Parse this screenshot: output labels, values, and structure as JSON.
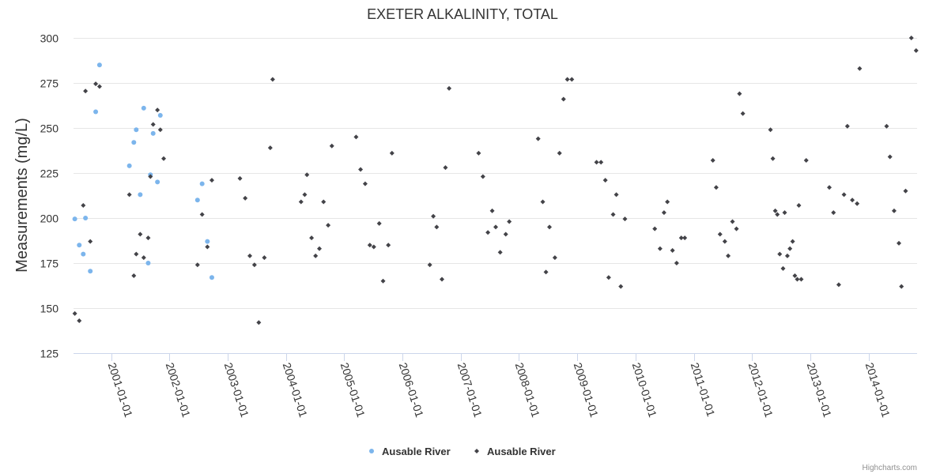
{
  "chart_data": {
    "type": "scatter",
    "title": "EXETER ALKALINITY, TOTAL",
    "xlabel": "",
    "ylabel": "Measurements (mg/L)",
    "xlim": [
      "2000-05-10",
      "2014-10-31"
    ],
    "ylim": [
      125,
      300
    ],
    "y_ticks": [
      125,
      150,
      175,
      200,
      225,
      250,
      275,
      300
    ],
    "x_ticks": [
      "2001-01-01",
      "2002-01-01",
      "2003-01-01",
      "2004-01-01",
      "2005-01-01",
      "2006-01-01",
      "2007-01-01",
      "2008-01-01",
      "2009-01-01",
      "2010-01-01",
      "2011-01-01",
      "2012-01-01",
      "2013-01-01",
      "2014-01-01"
    ],
    "grid": "horizontal",
    "legend_position": "bottom-center",
    "credits": "Highcharts.com",
    "series": [
      {
        "name": "Ausable River",
        "marker": "circle",
        "color": "#7cb5ec",
        "points": [
          [
            "2000-05-18",
            199.5
          ],
          [
            "2000-06-15",
            185
          ],
          [
            "2000-07-10",
            180
          ],
          [
            "2000-07-24",
            200
          ],
          [
            "2000-08-23",
            170.5
          ],
          [
            "2000-09-26",
            259
          ],
          [
            "2000-10-20",
            285
          ],
          [
            "2001-04-25",
            229
          ],
          [
            "2001-05-23",
            242
          ],
          [
            "2001-06-07",
            249
          ],
          [
            "2001-07-02",
            213
          ],
          [
            "2001-07-24",
            261
          ],
          [
            "2001-08-21",
            175
          ],
          [
            "2001-09-04",
            224
          ],
          [
            "2001-09-21",
            247
          ],
          [
            "2001-10-18",
            220
          ],
          [
            "2001-11-05",
            257
          ],
          [
            "2002-06-26",
            210
          ],
          [
            "2002-07-25",
            219
          ],
          [
            "2002-08-27",
            187
          ],
          [
            "2002-09-24",
            167
          ]
        ]
      },
      {
        "name": "Ausable River",
        "marker": "diamond",
        "color": "#434348",
        "points": [
          [
            "2000-05-18",
            147
          ],
          [
            "2000-06-15",
            143
          ],
          [
            "2000-07-10",
            207
          ],
          [
            "2000-07-24",
            270.5
          ],
          [
            "2000-08-23",
            187
          ],
          [
            "2000-09-26",
            274.5
          ],
          [
            "2000-10-20",
            273
          ],
          [
            "2001-04-25",
            213
          ],
          [
            "2001-05-23",
            168
          ],
          [
            "2001-06-07",
            180
          ],
          [
            "2001-07-02",
            191
          ],
          [
            "2001-07-24",
            178
          ],
          [
            "2001-08-21",
            189
          ],
          [
            "2001-09-04",
            223
          ],
          [
            "2001-09-21",
            252
          ],
          [
            "2001-10-18",
            260
          ],
          [
            "2001-11-05",
            249
          ],
          [
            "2001-11-26",
            233
          ],
          [
            "2002-06-26",
            174
          ],
          [
            "2002-07-25",
            202
          ],
          [
            "2002-08-27",
            184
          ],
          [
            "2002-09-24",
            221
          ],
          [
            "2003-03-19",
            222
          ],
          [
            "2003-04-21",
            211
          ],
          [
            "2003-05-20",
            179
          ],
          [
            "2003-06-18",
            174
          ],
          [
            "2003-07-15",
            142
          ],
          [
            "2003-08-19",
            178
          ],
          [
            "2003-09-25",
            239
          ],
          [
            "2003-10-10",
            277
          ],
          [
            "2004-04-05",
            209
          ],
          [
            "2004-04-28",
            213
          ],
          [
            "2004-05-12",
            224
          ],
          [
            "2004-06-10",
            189
          ],
          [
            "2004-07-05",
            179
          ],
          [
            "2004-07-29",
            183
          ],
          [
            "2004-08-24",
            209
          ],
          [
            "2004-09-22",
            196
          ],
          [
            "2004-10-15",
            240
          ],
          [
            "2005-03-16",
            245
          ],
          [
            "2005-04-13",
            227
          ],
          [
            "2005-05-12",
            219
          ],
          [
            "2005-06-10",
            185
          ],
          [
            "2005-07-05",
            184
          ],
          [
            "2005-08-08",
            197
          ],
          [
            "2005-09-01",
            165
          ],
          [
            "2005-10-04",
            185
          ],
          [
            "2005-10-27",
            236
          ],
          [
            "2006-06-21",
            174
          ],
          [
            "2006-07-13",
            201
          ],
          [
            "2006-08-03",
            195
          ],
          [
            "2006-09-05",
            166
          ],
          [
            "2006-09-27",
            228
          ],
          [
            "2006-10-20",
            272
          ],
          [
            "2007-04-23",
            236
          ],
          [
            "2007-05-20",
            223
          ],
          [
            "2007-06-20",
            192
          ],
          [
            "2007-07-17",
            204
          ],
          [
            "2007-08-08",
            195
          ],
          [
            "2007-09-05",
            181
          ],
          [
            "2007-10-10",
            191
          ],
          [
            "2007-11-01",
            198
          ],
          [
            "2008-04-30",
            244
          ],
          [
            "2008-05-29",
            209
          ],
          [
            "2008-06-18",
            170
          ],
          [
            "2008-07-10",
            195
          ],
          [
            "2008-08-13",
            178
          ],
          [
            "2008-09-11",
            236
          ],
          [
            "2008-10-06",
            266
          ],
          [
            "2008-10-30",
            277
          ],
          [
            "2008-11-27",
            277
          ],
          [
            "2009-05-01",
            231
          ],
          [
            "2009-05-29",
            231
          ],
          [
            "2009-06-25",
            221
          ],
          [
            "2009-07-16",
            167
          ],
          [
            "2009-08-13",
            202
          ],
          [
            "2009-09-02",
            213
          ],
          [
            "2009-09-30",
            162
          ],
          [
            "2009-10-26",
            199.5
          ],
          [
            "2010-05-01",
            194
          ],
          [
            "2010-06-03",
            183
          ],
          [
            "2010-06-28",
            203
          ],
          [
            "2010-07-19",
            209
          ],
          [
            "2010-08-20",
            182
          ],
          [
            "2010-09-15",
            175
          ],
          [
            "2010-10-14",
            189
          ],
          [
            "2010-11-05",
            189
          ],
          [
            "2011-04-30",
            232
          ],
          [
            "2011-05-21",
            217
          ],
          [
            "2011-06-14",
            191
          ],
          [
            "2011-07-14",
            187
          ],
          [
            "2011-08-04",
            179
          ],
          [
            "2011-08-31",
            198
          ],
          [
            "2011-09-25",
            194
          ],
          [
            "2011-10-14",
            269
          ],
          [
            "2011-11-04",
            258
          ],
          [
            "2012-04-25",
            249
          ],
          [
            "2012-05-10",
            233
          ],
          [
            "2012-05-25",
            204
          ],
          [
            "2012-06-07",
            202
          ],
          [
            "2012-06-22",
            180
          ],
          [
            "2012-07-13",
            172
          ],
          [
            "2012-07-23",
            203
          ],
          [
            "2012-08-09",
            179
          ],
          [
            "2012-08-25",
            183
          ],
          [
            "2012-09-11",
            187
          ],
          [
            "2012-09-25",
            168
          ],
          [
            "2012-10-10",
            166
          ],
          [
            "2012-10-20",
            207
          ],
          [
            "2012-11-04",
            166
          ],
          [
            "2012-12-05",
            232
          ],
          [
            "2013-04-29",
            217
          ],
          [
            "2013-05-25",
            203
          ],
          [
            "2013-06-27",
            163
          ],
          [
            "2013-07-30",
            213
          ],
          [
            "2013-08-20",
            251
          ],
          [
            "2013-09-20",
            210
          ],
          [
            "2013-10-20",
            208
          ],
          [
            "2013-11-05",
            283
          ],
          [
            "2014-04-23",
            251
          ],
          [
            "2014-05-14",
            234
          ],
          [
            "2014-06-09",
            204
          ],
          [
            "2014-07-09",
            186
          ],
          [
            "2014-07-25",
            162
          ],
          [
            "2014-08-20",
            215
          ],
          [
            "2014-09-25",
            300
          ],
          [
            "2014-10-25",
            293
          ]
        ]
      }
    ]
  }
}
